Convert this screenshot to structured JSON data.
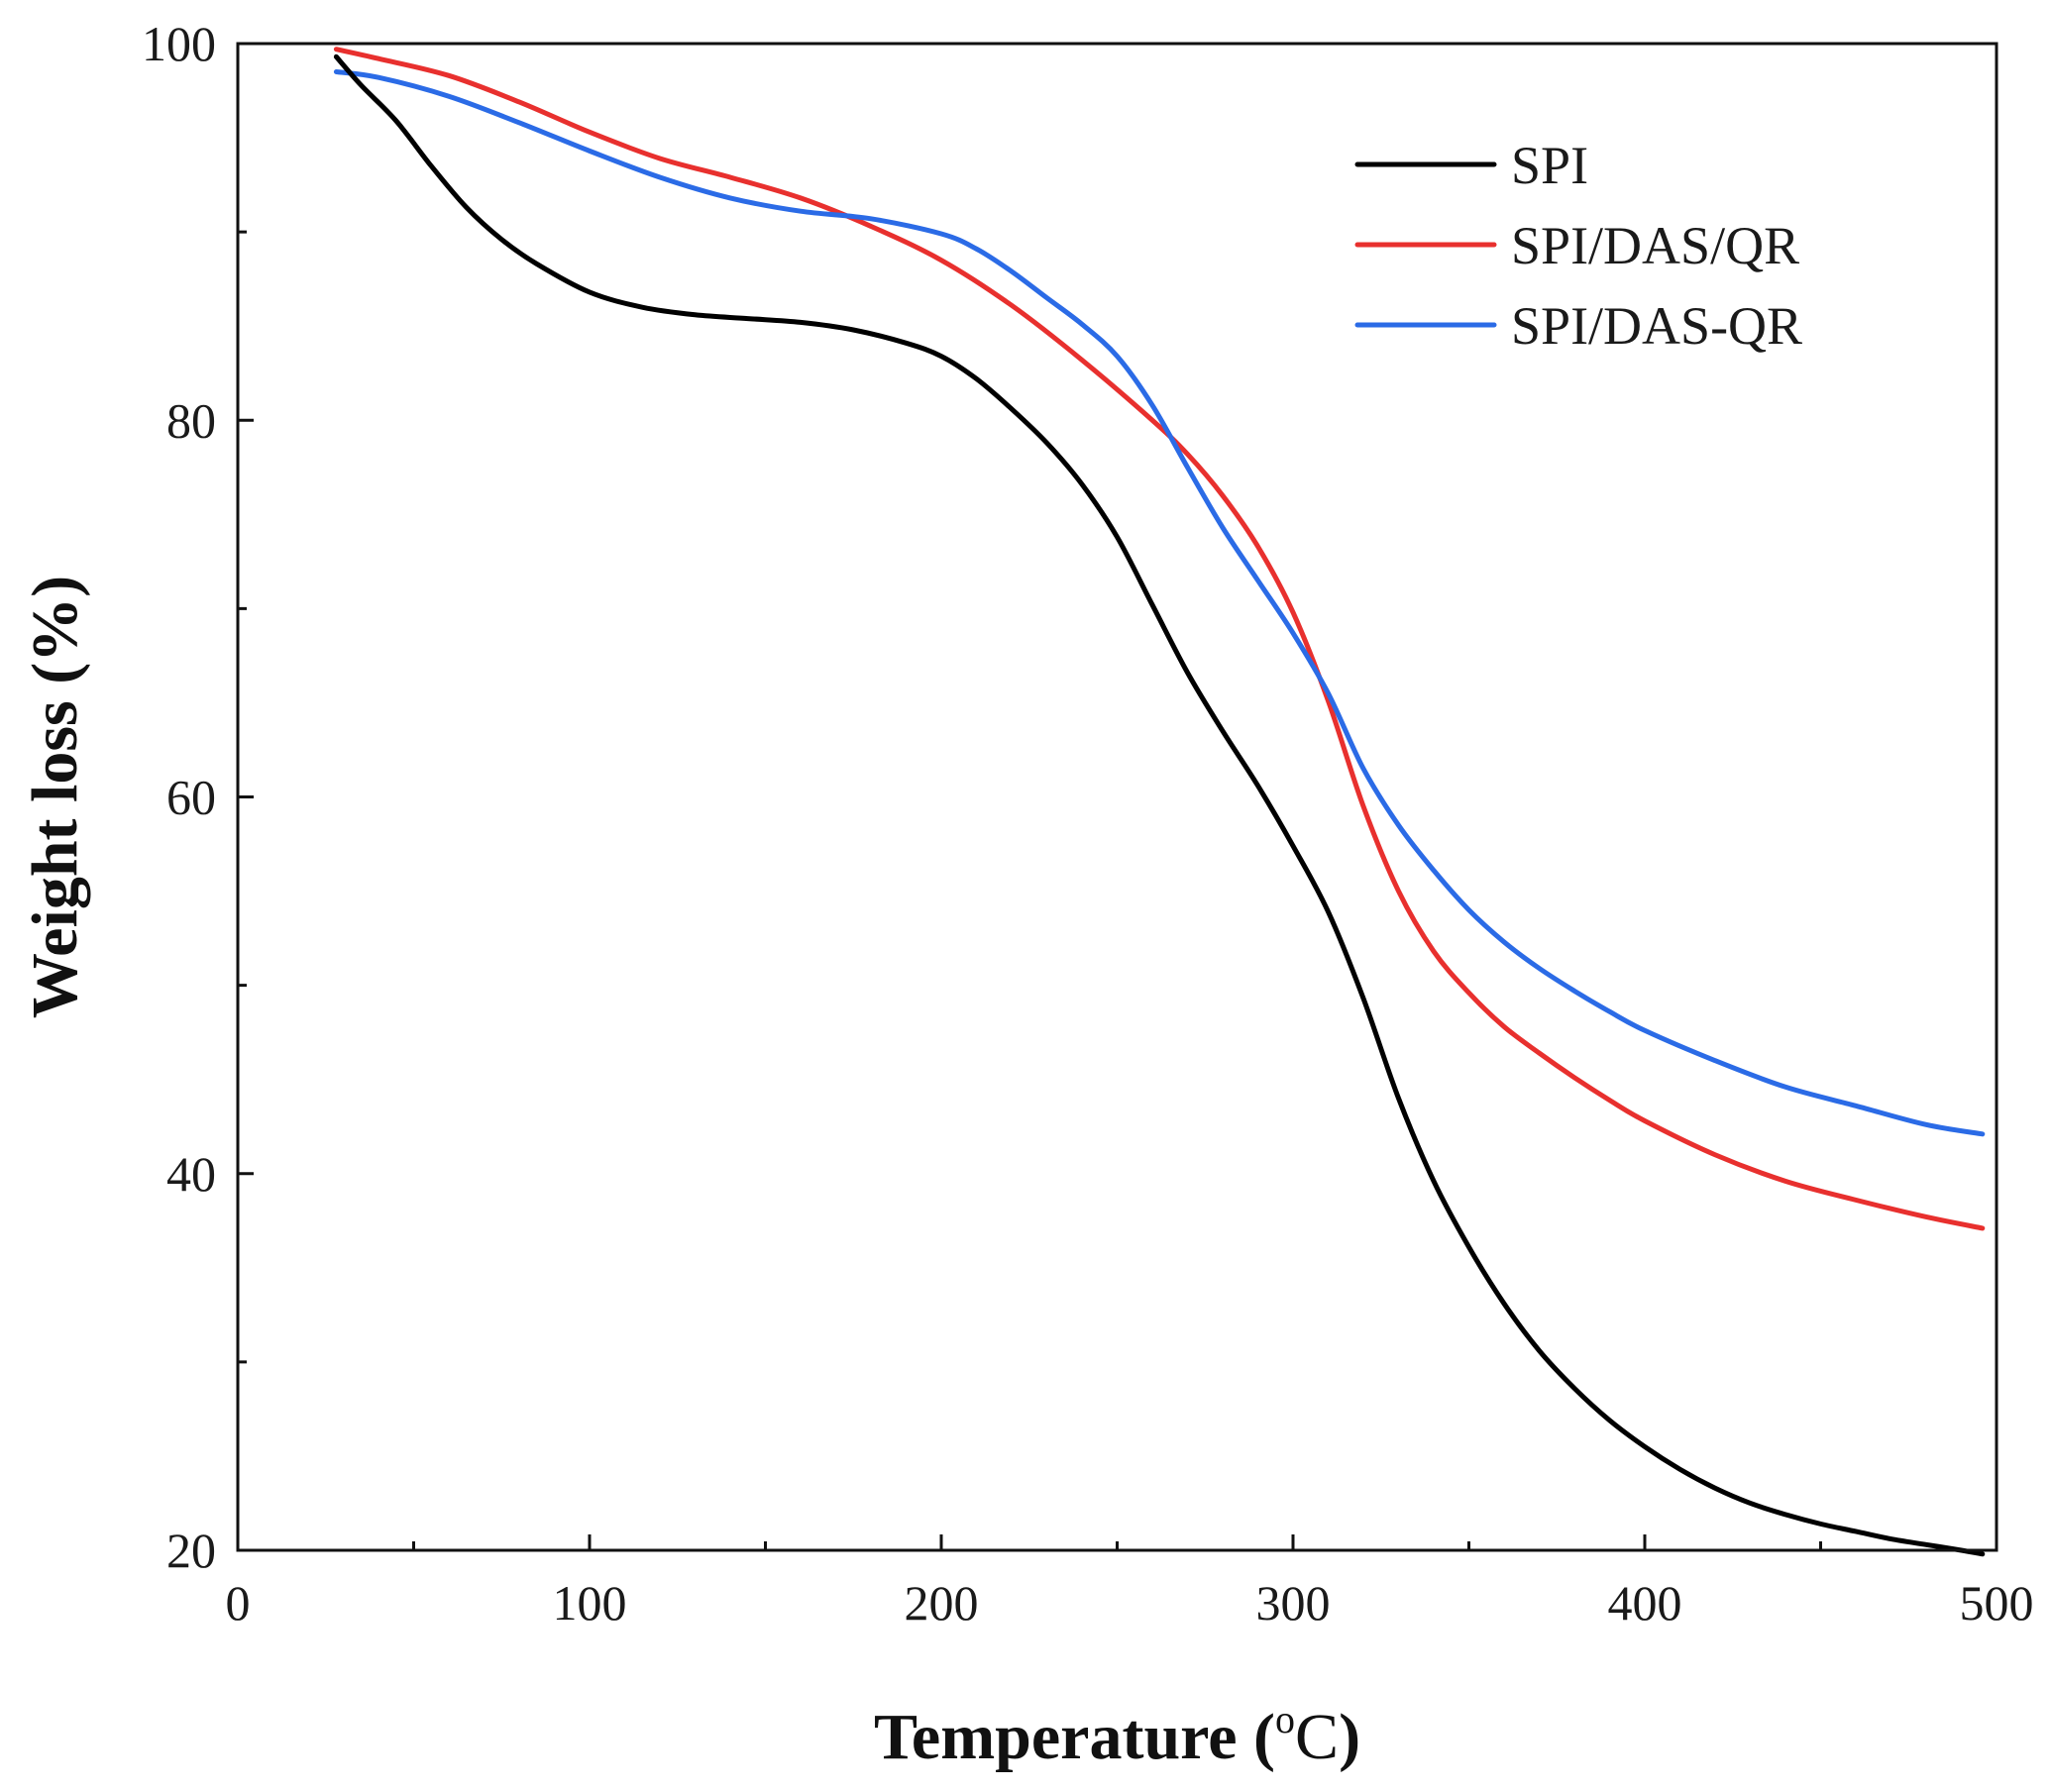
{
  "chart_data": {
    "type": "line",
    "title": "",
    "xlabel": "Temperature (",
    "xlabel_unit": "oC",
    "xlabel_close": ")",
    "ylabel": "Weight loss (%)",
    "xlim": [
      0,
      500
    ],
    "ylim": [
      20,
      100
    ],
    "x_major_ticks": [
      0,
      100,
      200,
      300,
      400,
      500
    ],
    "x_minor_ticks": [
      50,
      150,
      250,
      350,
      450
    ],
    "y_major_ticks": [
      20,
      40,
      60,
      80,
      100
    ],
    "y_minor_ticks": [
      30,
      50,
      70,
      90
    ],
    "grid": false,
    "legend_position": "top-right",
    "series": [
      {
        "name": "SPI",
        "color": "#000000",
        "x": [
          28,
          35,
          45,
          55,
          65,
          75,
          85,
          100,
          115,
          130,
          145,
          160,
          175,
          190,
          200,
          210,
          220,
          230,
          240,
          250,
          260,
          270,
          280,
          290,
          300,
          310,
          320,
          330,
          340,
          350,
          360,
          370,
          380,
          390,
          400,
          410,
          420,
          430,
          440,
          450,
          460,
          470,
          480,
          490,
          496
        ],
        "y": [
          99.3,
          97.8,
          95.9,
          93.5,
          91.3,
          89.6,
          88.3,
          86.8,
          86.0,
          85.6,
          85.4,
          85.2,
          84.8,
          84.1,
          83.4,
          82.2,
          80.6,
          78.8,
          76.6,
          73.8,
          70.2,
          66.6,
          63.5,
          60.6,
          57.4,
          53.9,
          49.3,
          44.0,
          39.6,
          36.1,
          33.1,
          30.6,
          28.6,
          26.9,
          25.5,
          24.3,
          23.3,
          22.5,
          21.9,
          21.4,
          21.0,
          20.6,
          20.3,
          20.0,
          19.8
        ]
      },
      {
        "name": "SPI/DAS/QR",
        "color": "#e8302e",
        "x": [
          28,
          40,
          60,
          80,
          100,
          120,
          140,
          160,
          180,
          200,
          220,
          240,
          260,
          270,
          280,
          290,
          300,
          310,
          320,
          330,
          340,
          350,
          360,
          370,
          380,
          390,
          400,
          420,
          440,
          460,
          480,
          496
        ],
        "y": [
          99.7,
          99.2,
          98.3,
          96.9,
          95.3,
          93.9,
          92.9,
          91.8,
          90.3,
          88.5,
          86.1,
          83.2,
          80.0,
          78.2,
          76.0,
          73.3,
          69.8,
          65.1,
          59.5,
          55.0,
          51.8,
          49.6,
          47.8,
          46.4,
          45.1,
          43.9,
          42.8,
          41.0,
          39.6,
          38.6,
          37.7,
          37.1
        ]
      },
      {
        "name": "SPI/DAS-QR",
        "color": "#2b6be6",
        "x": [
          28,
          40,
          60,
          80,
          100,
          120,
          140,
          160,
          180,
          200,
          210,
          220,
          230,
          240,
          250,
          260,
          270,
          280,
          290,
          300,
          310,
          320,
          330,
          340,
          350,
          360,
          370,
          380,
          390,
          400,
          420,
          440,
          460,
          480,
          496
        ],
        "y": [
          98.5,
          98.2,
          97.2,
          95.8,
          94.3,
          92.9,
          91.8,
          91.1,
          90.7,
          89.9,
          89.1,
          87.9,
          86.5,
          85.1,
          83.4,
          80.8,
          77.5,
          74.3,
          71.5,
          68.7,
          65.5,
          61.5,
          58.5,
          56.1,
          54.0,
          52.3,
          50.9,
          49.7,
          48.6,
          47.6,
          46.0,
          44.6,
          43.6,
          42.6,
          42.1
        ]
      }
    ]
  }
}
